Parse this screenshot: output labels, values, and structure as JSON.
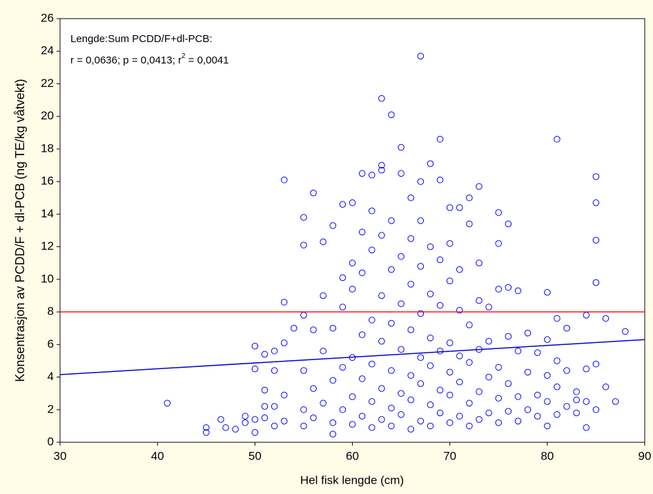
{
  "chart_data": {
    "type": "scatter",
    "xlabel": "Hel fisk lengde (cm)",
    "ylabel": "Konsentrasjon av PCDD/F + dl-PCB (ng TE/kg våtvekt)",
    "annotations": {
      "line1": "Lengde:Sum PCDD/F+dl-PCB:",
      "line2": "r = 0,0636; p = 0,0413; r",
      "line2_sup": "2",
      "line2_end": " = 0,0041"
    },
    "xlim": [
      30,
      90
    ],
    "xticks": [
      30,
      40,
      50,
      60,
      70,
      80,
      90
    ],
    "ylim": [
      0,
      26
    ],
    "yticks": [
      0,
      2,
      4,
      6,
      8,
      10,
      12,
      14,
      16,
      18,
      20,
      22,
      24,
      26
    ],
    "grid": false,
    "reference_line": {
      "value": 8,
      "color": "#ff0000"
    },
    "trend_line": {
      "x": [
        30,
        90
      ],
      "values": [
        4.15,
        6.3
      ],
      "color": "#0000cc"
    },
    "series": [
      {
        "color": "#0000ff",
        "x": [
          41,
          45,
          45,
          46.5,
          47,
          48,
          49,
          49,
          50,
          50,
          50,
          50,
          51,
          51,
          51,
          51,
          52,
          52,
          52,
          52,
          53,
          53,
          53,
          53,
          53,
          54,
          55,
          55,
          55,
          55,
          56,
          56,
          57,
          57,
          58,
          58,
          59,
          59,
          60,
          60,
          61,
          61,
          62,
          62,
          63,
          63,
          63,
          64,
          65,
          65,
          66,
          67,
          67,
          68,
          69,
          69,
          70,
          71,
          72,
          73,
          75,
          75,
          76,
          77,
          80,
          81,
          81,
          84,
          84,
          85,
          85,
          85,
          85,
          86,
          86,
          87,
          88,
          82,
          83,
          79,
          55,
          55,
          56,
          56,
          57,
          57,
          58,
          58,
          58,
          59,
          59,
          59,
          60,
          60,
          60,
          60,
          61,
          61,
          61,
          61,
          62,
          62,
          62,
          62,
          62,
          63,
          63,
          63,
          63,
          63,
          64,
          64,
          64,
          64,
          64,
          64,
          65,
          65,
          65,
          65,
          65,
          66,
          66,
          66,
          66,
          66,
          66,
          67,
          67,
          67,
          67,
          67,
          67,
          68,
          68,
          68,
          68,
          68,
          68,
          69,
          69,
          69,
          69,
          69,
          70,
          70,
          70,
          70,
          70,
          70,
          71,
          71,
          71,
          71,
          71,
          72,
          72,
          72,
          72,
          72,
          73,
          73,
          73,
          73,
          73,
          74,
          74,
          74,
          74,
          75,
          75,
          75,
          75,
          76,
          76,
          76,
          76,
          77,
          77,
          77,
          78,
          78,
          78,
          79,
          79,
          80,
          80,
          80,
          80,
          81,
          81,
          81,
          82,
          82,
          83,
          83,
          84,
          84,
          85,
          85
        ],
        "values": [
          2.4,
          0.6,
          0.9,
          1.4,
          0.9,
          0.8,
          1.2,
          1.6,
          0.6,
          1.4,
          4.5,
          5.9,
          1.5,
          2.2,
          3.2,
          5.4,
          1.0,
          2.2,
          4.4,
          5.6,
          8.6,
          16.1,
          1.3,
          2.9,
          6.1,
          7.0,
          13.8,
          12.1,
          7.8,
          4.4,
          15.3,
          6.9,
          12.3,
          9.0,
          13.3,
          0.5,
          14.6,
          10.1,
          14.7,
          11.0,
          16.5,
          12.9,
          16.4,
          14.2,
          21.1,
          16.7,
          17.0,
          20.1,
          18.1,
          16.5,
          15.0,
          23.7,
          16.0,
          17.1,
          18.6,
          16.1,
          14.4,
          14.4,
          15.0,
          15.7,
          14.1,
          12.2,
          13.4,
          9.3,
          9.2,
          18.6,
          7.6,
          7.8,
          0.9,
          16.3,
          14.7,
          12.4,
          9.8,
          7.6,
          3.4,
          2.5,
          6.8,
          7.0,
          3.1,
          5.5,
          1.0,
          2.0,
          1.5,
          3.3,
          2.4,
          5.6,
          1.2,
          3.8,
          7.0,
          2.0,
          4.6,
          8.3,
          1.1,
          2.8,
          5.2,
          9.4,
          1.6,
          3.9,
          6.6,
          10.4,
          0.9,
          2.5,
          4.8,
          7.5,
          11.8,
          1.4,
          3.3,
          6.2,
          9.0,
          12.7,
          1.0,
          2.1,
          4.4,
          7.3,
          10.6,
          13.6,
          1.7,
          3.0,
          5.7,
          8.5,
          11.4,
          0.8,
          2.6,
          4.1,
          6.9,
          9.7,
          12.5,
          1.3,
          3.6,
          5.2,
          7.9,
          10.8,
          13.6,
          1.0,
          2.3,
          4.7,
          6.4,
          9.1,
          12.0,
          1.8,
          3.2,
          5.6,
          8.4,
          11.2,
          1.2,
          2.9,
          4.3,
          6.1,
          9.9,
          12.2,
          1.6,
          3.7,
          5.3,
          8.1,
          10.6,
          1.0,
          2.4,
          4.9,
          7.2,
          13.4,
          1.4,
          3.1,
          5.7,
          8.7,
          11.0,
          1.8,
          4.0,
          6.2,
          8.3,
          1.2,
          2.7,
          4.6,
          9.4,
          1.9,
          3.6,
          6.5,
          9.5,
          1.3,
          2.8,
          5.6,
          2.0,
          4.3,
          6.7,
          1.6,
          2.9,
          1.0,
          2.5,
          4.1,
          6.3,
          1.7,
          3.4,
          5.0,
          2.2,
          4.4,
          1.8,
          2.6,
          2.5,
          4.5,
          2.0,
          4.8
        ]
      }
    ]
  }
}
